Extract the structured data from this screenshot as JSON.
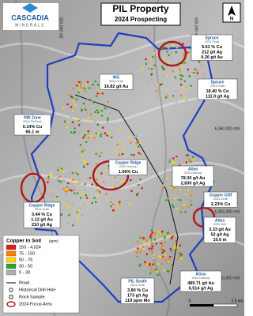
{
  "header": {
    "logo": [
      "CASCADIA",
      "MINERALS"
    ],
    "title": "PIL Property",
    "subtitle": "2024 Prospecting"
  },
  "north": "N",
  "eastings": [
    "620,000 mE",
    "630,000 mE"
  ],
  "northings": [
    "6,360,000 mN",
    "6,355,000 mN",
    "6,350,000 mN"
  ],
  "callouts": [
    {
      "name": "Spruce",
      "type": "2022 Float",
      "lines": [
        "9.61 % Cu",
        "212 g/t Ag",
        "0.26 g/t Au"
      ]
    },
    {
      "name": "WG",
      "type": "2024 Grab",
      "lines": [
        "16.82 g/t Au"
      ]
    },
    {
      "name": "Spruce",
      "type": "2024 Float",
      "lines": [
        "18.40 % Cu",
        "111.0 g/t Ag"
      ]
    },
    {
      "name": "NW Zone",
      "type": "2024 Pit/Grab",
      "lines": [
        "0.14% Cu",
        "65.1 m"
      ]
    },
    {
      "name": "Copper Ridge",
      "type": "2020 Outcrop",
      "lines": [
        "1.56% Cu"
      ]
    },
    {
      "name": "Atlas",
      "type": "2022 Outcrop",
      "lines": [
        "78.30 g/t Au",
        "2,830 g/t Ag"
      ]
    },
    {
      "name": "Copper Cliff",
      "type": "2024 Grab",
      "lines": [
        "2.23% Cu"
      ]
    },
    {
      "name": "Copper Ridge",
      "type": "2024 Grab",
      "lines": [
        "3.44 % Cu",
        "1.12 g/t Au",
        "210 g/t Ag"
      ]
    },
    {
      "name": "Atlas",
      "type": "2024 Drill",
      "lines": [
        "3.33 g/t Au",
        "52 g/t Ag",
        "10.0 m"
      ]
    },
    {
      "name": "PIL South",
      "type": "2024 Grab",
      "lines": [
        "3.80 % Cu",
        "173 g/t Ag",
        "119 ppm Mo"
      ]
    },
    {
      "name": "AGus",
      "type": "2024 Outcrop",
      "lines": [
        "489.71 g/t Au",
        "6,514 g/t Ag"
      ]
    }
  ],
  "legend": {
    "title": "Copper in Soil",
    "unit": "(ppm)",
    "soil": [
      {
        "label": "150 - 4,024",
        "color": "#e31a1c"
      },
      {
        "label": "75 - 150",
        "color": "#ff7f00"
      },
      {
        "label": "50 - 75",
        "color": "#ffd700"
      },
      {
        "label": "30 - 50",
        "color": "#33a02c"
      },
      {
        "label": "0 - 30",
        "color": "#b0b0b0"
      }
    ],
    "symbols": [
      "Road",
      "Historical Drill Hole",
      "Rock Sample",
      "2024 Focus Area"
    ]
  },
  "scale": {
    "start": "0",
    "end": "2.5 km"
  }
}
